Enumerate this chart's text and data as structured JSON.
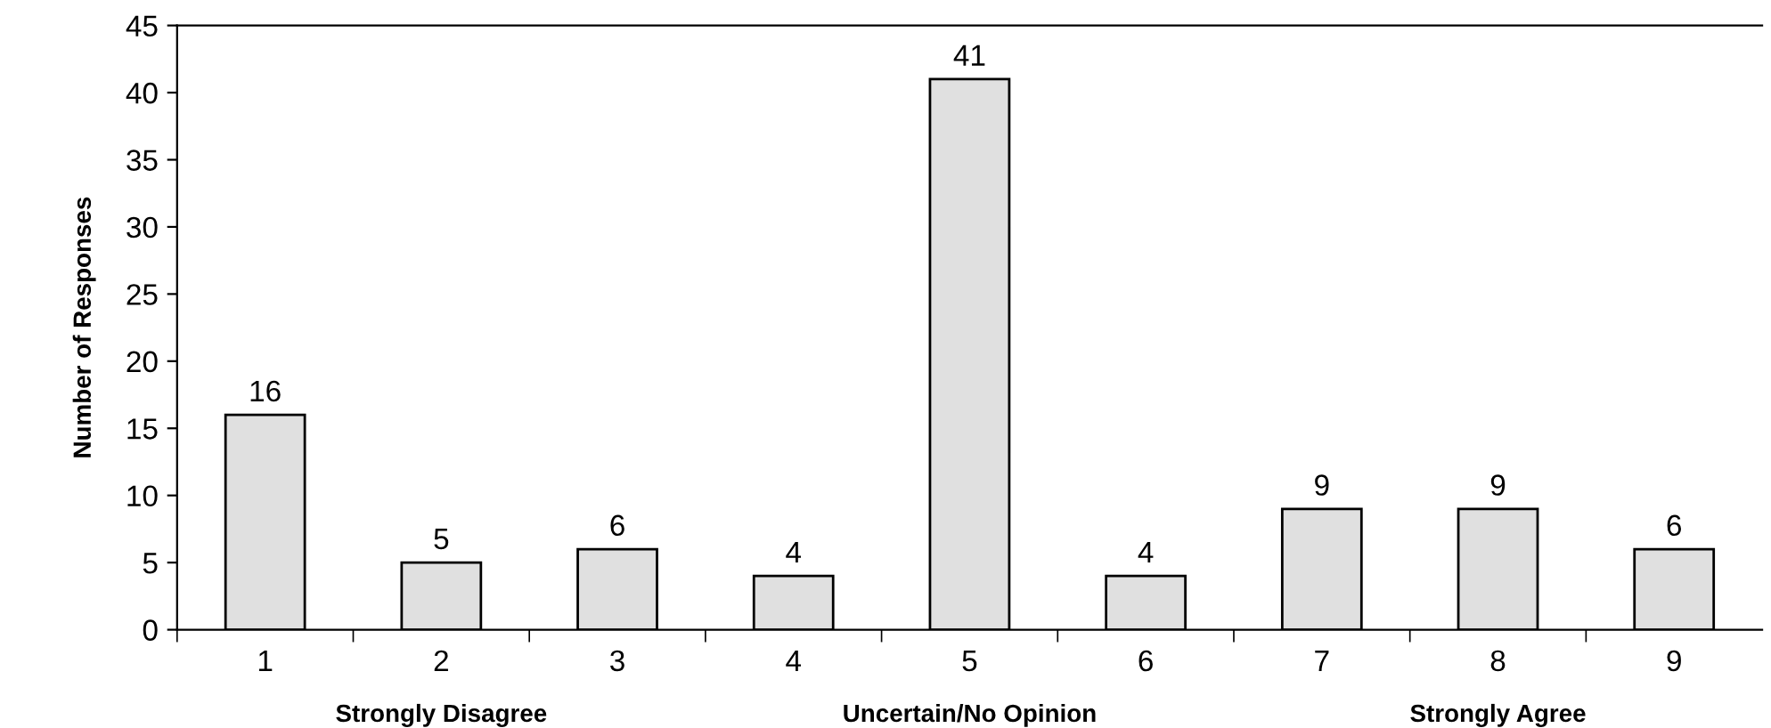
{
  "chart_data": {
    "type": "bar",
    "categories": [
      "1",
      "2",
      "3",
      "4",
      "5",
      "6",
      "7",
      "8",
      "9"
    ],
    "values": [
      16,
      5,
      6,
      4,
      41,
      4,
      9,
      9,
      6
    ],
    "color": "#e0e0e0",
    "ylabel": "Number of Responses",
    "ylim": [
      0,
      45
    ],
    "yticks": [
      0,
      5,
      10,
      15,
      20,
      25,
      30,
      35,
      40,
      45
    ],
    "data_labels": true,
    "grid": false,
    "legend": false,
    "annotations": [
      "Strongly Disagree",
      "Uncertain/No Opinion",
      "Strongly Agree"
    ]
  }
}
